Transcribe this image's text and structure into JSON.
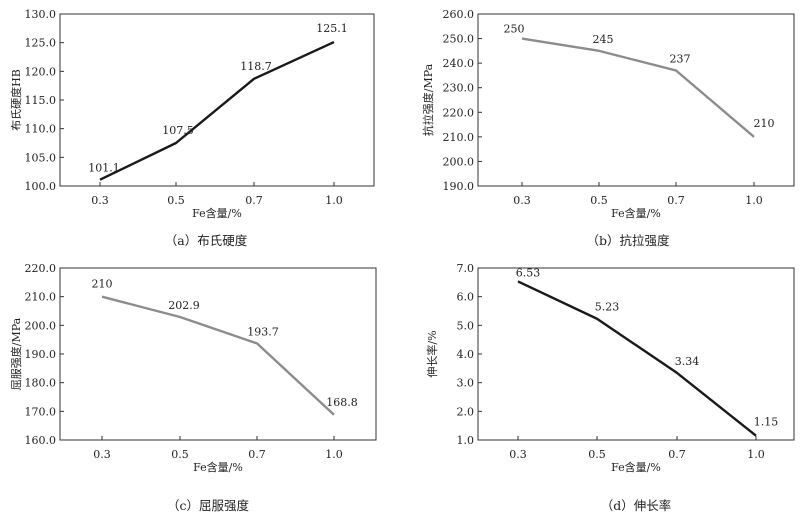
{
  "chart_data": [
    {
      "type": "line",
      "categories": [
        "0.3",
        "0.5",
        "0.7",
        "1.0"
      ],
      "values": [
        101.1,
        107.5,
        118.7,
        125.1
      ],
      "value_labels": [
        "101.1",
        "107.5",
        "118.7",
        "125.1"
      ],
      "yticks": [
        "100.0",
        "105.0",
        "110.0",
        "115.0",
        "120.0",
        "125.0",
        "130.0"
      ],
      "ylim": [
        100,
        130
      ],
      "xlabel": "Fe含量/%",
      "ylabel": "布氏硬度HB",
      "caption": "（a）布氏硬度",
      "line_color": "#1a1a1a",
      "grid": false
    },
    {
      "type": "line",
      "categories": [
        "0.3",
        "0.5",
        "0.7",
        "1.0"
      ],
      "values": [
        250,
        245,
        237,
        210
      ],
      "value_labels": [
        "250",
        "245",
        "237",
        "210"
      ],
      "yticks": [
        "190.0",
        "200.0",
        "210.0",
        "220.0",
        "230.0",
        "240.0",
        "250.0",
        "260.0"
      ],
      "ylim": [
        190,
        260
      ],
      "xlabel": "Fe含量/%",
      "ylabel": "抗拉强度/MPa",
      "caption": "（b）抗拉强度",
      "line_color": "#8c8c8c",
      "grid": false
    },
    {
      "type": "line",
      "categories": [
        "0.3",
        "0.5",
        "0.7",
        "1.0"
      ],
      "values": [
        210,
        202.9,
        193.7,
        168.8
      ],
      "value_labels": [
        "210",
        "202.9",
        "193.7",
        "168.8"
      ],
      "yticks": [
        "160.0",
        "170.0",
        "180.0",
        "190.0",
        "200.0",
        "210.0",
        "220.0"
      ],
      "ylim": [
        160,
        220
      ],
      "xlabel": "Fe含量/%",
      "ylabel": "屈服强度/MPa",
      "caption": "（c）屈服强度",
      "line_color": "#8c8c8c",
      "grid": false
    },
    {
      "type": "line",
      "categories": [
        "0.3",
        "0.5",
        "0.7",
        "1.0"
      ],
      "values": [
        6.53,
        5.23,
        3.34,
        1.15
      ],
      "value_labels": [
        "6.53",
        "5.23",
        "3.34",
        "1.15"
      ],
      "yticks": [
        "1.0",
        "2.0",
        "3.0",
        "4.0",
        "5.0",
        "6.0",
        "7.0"
      ],
      "ylim": [
        1,
        7
      ],
      "xlabel": "Fe含量/%",
      "ylabel": "伸长率/%",
      "caption": "（d）伸长率",
      "line_color": "#1a1a1a",
      "grid": false
    }
  ]
}
